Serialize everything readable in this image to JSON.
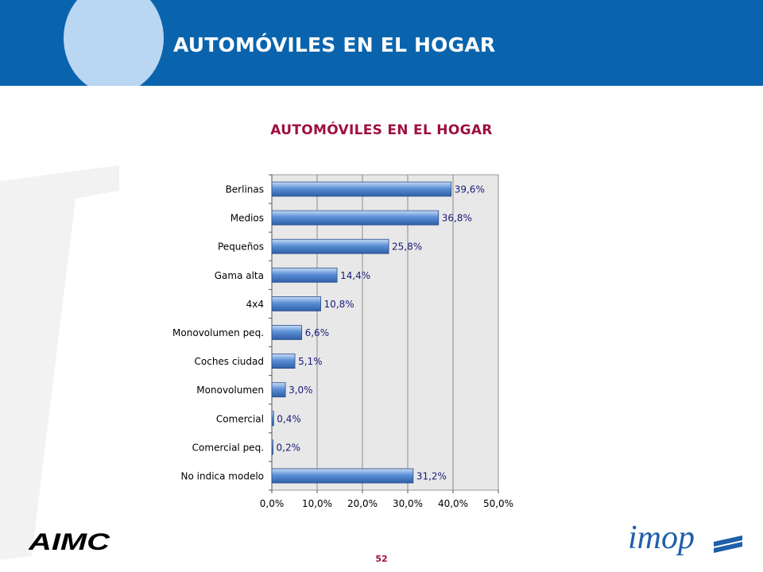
{
  "header": {
    "title": "AUTOMÓVILES EN EL HOGAR"
  },
  "colors": {
    "header_bg": "#0a64ad",
    "accent": "#9e1040",
    "bar": "#5b8fd6",
    "plot_bg": "#e8e8e8"
  },
  "footer": {
    "page_number": "52",
    "left_logo_text": "AIMC",
    "right_logo_text": "imop"
  },
  "chart_data": {
    "type": "bar",
    "orientation": "horizontal",
    "title": "AUTOMÓVILES EN EL HOGAR",
    "categories": [
      "Berlinas",
      "Medios",
      "Pequeños",
      "Gama alta",
      "4x4",
      "Monovolumen peq.",
      "Coches ciudad",
      "Monovolumen",
      "Comercial",
      "Comercial peq.",
      "No indica modelo"
    ],
    "values": [
      39.6,
      36.8,
      25.8,
      14.4,
      10.8,
      6.6,
      5.1,
      3.0,
      0.4,
      0.2,
      31.2
    ],
    "data_labels": [
      "39,6%",
      "36,8%",
      "25,8%",
      "14,4%",
      "10,8%",
      "6,6%",
      "5,1%",
      "3,0%",
      "0,4%",
      "0,2%",
      "31,2%"
    ],
    "x_ticks": [
      "0,0%",
      "10,0%",
      "20,0%",
      "30,0%",
      "40,0%",
      "50,0%"
    ],
    "xlim": [
      0,
      50
    ],
    "grid": true,
    "legend": "none"
  }
}
